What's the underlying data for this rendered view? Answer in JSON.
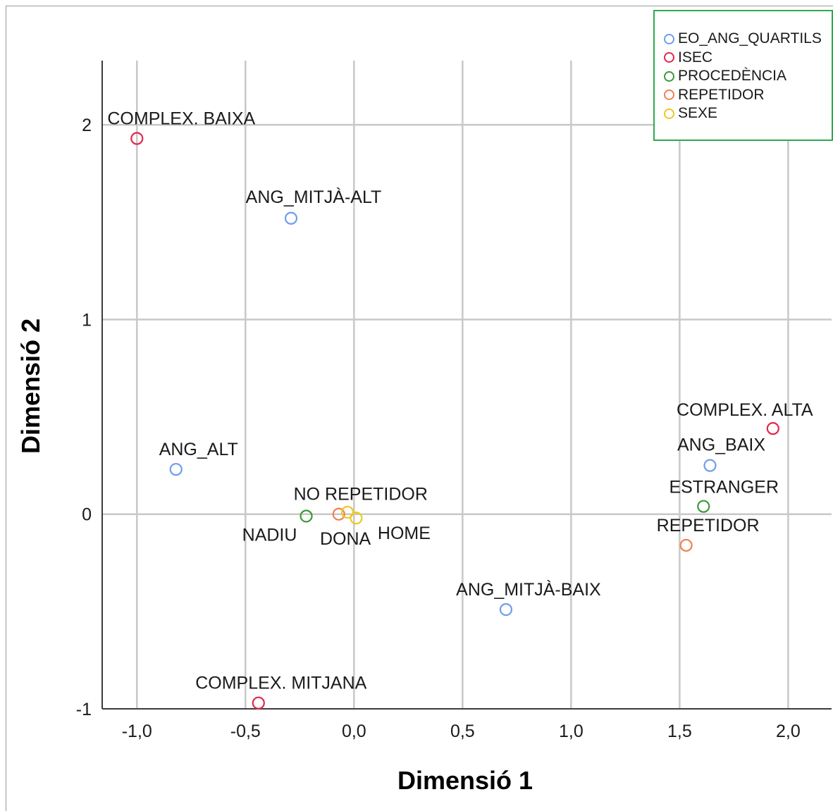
{
  "chart_data": {
    "type": "scatter",
    "title": "",
    "xlabel": "Dimensió 1",
    "ylabel": "Dimensió 2",
    "xlim": [
      -1.16,
      2.2
    ],
    "ylim": [
      -1.0,
      2.33
    ],
    "x_ticks": [
      {
        "value": -1.0,
        "label": "-1,0"
      },
      {
        "value": -0.5,
        "label": "-0,5"
      },
      {
        "value": 0.0,
        "label": "0,0"
      },
      {
        "value": 0.5,
        "label": "0,5"
      },
      {
        "value": 1.0,
        "label": "1,0"
      },
      {
        "value": 1.5,
        "label": "1,5"
      },
      {
        "value": 2.0,
        "label": "2,0"
      }
    ],
    "y_ticks": [
      {
        "value": -1,
        "label": "-1"
      },
      {
        "value": 0,
        "label": "0"
      },
      {
        "value": 1,
        "label": "1"
      },
      {
        "value": 2,
        "label": "2"
      }
    ],
    "grid": true,
    "legend_position": "top-right",
    "series": [
      {
        "name": "EO_ANG_QUARTILS",
        "color": "#6d9eeb",
        "points": [
          {
            "label": "ANG_MITJÀ-ALT",
            "x": -0.29,
            "y": 1.52
          },
          {
            "label": "ANG_ALT",
            "x": -0.82,
            "y": 0.23
          },
          {
            "label": "ANG_BAIX",
            "x": 1.64,
            "y": 0.25
          },
          {
            "label": "ANG_MITJÀ-BAIX",
            "x": 0.7,
            "y": -0.49
          }
        ]
      },
      {
        "name": "ISEC",
        "color": "#e0284d",
        "points": [
          {
            "label": "COMPLEX. BAIXA",
            "x": -1.0,
            "y": 1.93
          },
          {
            "label": "COMPLEX. ALTA",
            "x": 1.93,
            "y": 0.44
          },
          {
            "label": "COMPLEX. MITJANA",
            "x": -0.44,
            "y": -0.97
          }
        ]
      },
      {
        "name": "PROCEDÈNCIA",
        "color": "#3a9a3a",
        "points": [
          {
            "label": "NADIU",
            "x": -0.22,
            "y": -0.01
          },
          {
            "label": "ESTRANGER",
            "x": 1.61,
            "y": 0.04
          }
        ]
      },
      {
        "name": "REPETIDOR",
        "color": "#f08050",
        "points": [
          {
            "label": "NO REPETIDOR",
            "x": -0.07,
            "y": 0.0
          },
          {
            "label": "REPETIDOR",
            "x": 1.53,
            "y": -0.16
          }
        ]
      },
      {
        "name": "SEXE",
        "color": "#ecc820",
        "points": [
          {
            "label": "DONA",
            "x": -0.03,
            "y": 0.01
          },
          {
            "label": "HOME",
            "x": 0.01,
            "y": -0.02
          }
        ]
      }
    ]
  }
}
